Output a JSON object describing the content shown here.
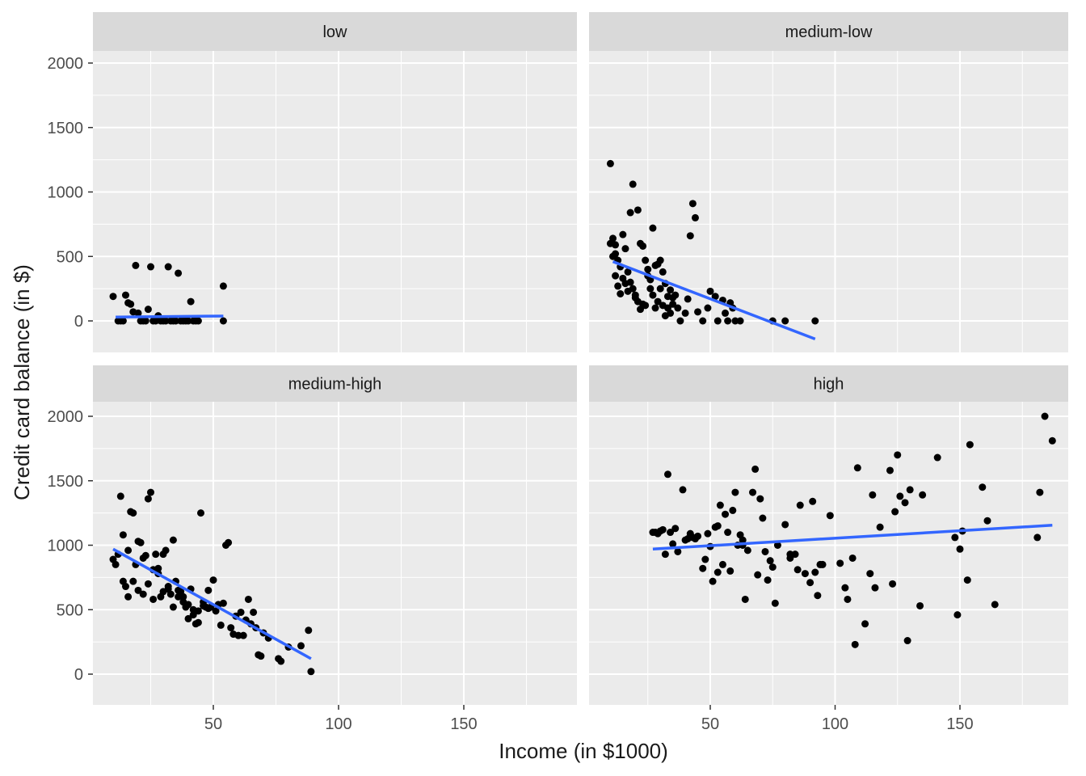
{
  "chart_data": {
    "type": "scatter",
    "facet_layout": "2x2",
    "xlabel": "Income (in $1000)",
    "ylabel": "Credit card balance (in $)",
    "xlim": [
      0,
      193
    ],
    "ylim": [
      -240,
      2100
    ],
    "x_ticks": [
      50,
      100,
      150
    ],
    "x_tick_labels": [
      "50",
      "100",
      "150"
    ],
    "y_ticks": [
      0,
      500,
      1000,
      1500,
      2000
    ],
    "y_tick_labels": [
      "0",
      "500",
      "1000",
      "1500",
      "2000"
    ],
    "grid": true,
    "colors": {
      "panel_bg": "#EBEBEB",
      "strip_bg": "#D9D9D9",
      "grid_major": "#FFFFFF",
      "point": "#000000",
      "trend_line": "#3366FF",
      "text": "#4D4D4D",
      "title_text": "#1A1A1A"
    },
    "panels": [
      {
        "label": "low",
        "trend": [
          [
            11,
            30
          ],
          [
            54,
            38
          ]
        ],
        "points": [
          [
            10,
            190
          ],
          [
            12,
            0
          ],
          [
            14,
            0
          ],
          [
            15,
            200
          ],
          [
            16,
            140
          ],
          [
            17,
            130
          ],
          [
            18,
            70
          ],
          [
            19,
            430
          ],
          [
            20,
            60
          ],
          [
            21,
            0
          ],
          [
            22,
            0
          ],
          [
            24,
            90
          ],
          [
            25,
            420
          ],
          [
            26,
            0
          ],
          [
            27,
            0
          ],
          [
            28,
            40
          ],
          [
            29,
            0
          ],
          [
            30,
            0
          ],
          [
            31,
            0
          ],
          [
            32,
            420
          ],
          [
            33,
            0
          ],
          [
            34,
            0
          ],
          [
            35,
            0
          ],
          [
            36,
            370
          ],
          [
            37,
            0
          ],
          [
            38,
            0
          ],
          [
            39,
            0
          ],
          [
            40,
            0
          ],
          [
            41,
            150
          ],
          [
            42,
            0
          ],
          [
            44,
            0
          ],
          [
            54,
            270
          ],
          [
            54,
            0
          ],
          [
            13,
            0
          ],
          [
            23,
            0
          ],
          [
            43,
            0
          ]
        ]
      },
      {
        "label": "medium-low",
        "trend": [
          [
            11,
            460
          ],
          [
            92,
            -140
          ]
        ],
        "points": [
          [
            10,
            1220
          ],
          [
            11,
            640
          ],
          [
            12,
            590
          ],
          [
            12,
            520
          ],
          [
            13,
            470
          ],
          [
            14,
            420
          ],
          [
            15,
            670
          ],
          [
            16,
            560
          ],
          [
            17,
            380
          ],
          [
            18,
            300
          ],
          [
            19,
            250
          ],
          [
            20,
            200
          ],
          [
            10,
            600
          ],
          [
            11,
            500
          ],
          [
            12,
            350
          ],
          [
            13,
            270
          ],
          [
            14,
            210
          ],
          [
            15,
            330
          ],
          [
            16,
            290
          ],
          [
            17,
            230
          ],
          [
            18,
            840
          ],
          [
            19,
            1060
          ],
          [
            21,
            860
          ],
          [
            22,
            600
          ],
          [
            23,
            580
          ],
          [
            24,
            470
          ],
          [
            25,
            400
          ],
          [
            26,
            320
          ],
          [
            27,
            720
          ],
          [
            28,
            430
          ],
          [
            29,
            440
          ],
          [
            30,
            470
          ],
          [
            31,
            380
          ],
          [
            32,
            290
          ],
          [
            33,
            190
          ],
          [
            34,
            240
          ],
          [
            35,
            180
          ],
          [
            37,
            100
          ],
          [
            38,
            0
          ],
          [
            40,
            60
          ],
          [
            41,
            170
          ],
          [
            42,
            660
          ],
          [
            43,
            910
          ],
          [
            44,
            800
          ],
          [
            45,
            70
          ],
          [
            47,
            0
          ],
          [
            49,
            100
          ],
          [
            50,
            230
          ],
          [
            52,
            190
          ],
          [
            53,
            0
          ],
          [
            55,
            160
          ],
          [
            56,
            60
          ],
          [
            57,
            0
          ],
          [
            58,
            140
          ],
          [
            59,
            100
          ],
          [
            60,
            0
          ],
          [
            62,
            0
          ],
          [
            20,
            180
          ],
          [
            21,
            150
          ],
          [
            22,
            90
          ],
          [
            23,
            130
          ],
          [
            24,
            120
          ],
          [
            25,
            350
          ],
          [
            26,
            250
          ],
          [
            27,
            200
          ],
          [
            28,
            100
          ],
          [
            29,
            150
          ],
          [
            30,
            250
          ],
          [
            31,
            120
          ],
          [
            32,
            40
          ],
          [
            33,
            100
          ],
          [
            34,
            60
          ],
          [
            35,
            130
          ],
          [
            36,
            200
          ],
          [
            75,
            0
          ],
          [
            80,
            0
          ],
          [
            92,
            0
          ]
        ]
      },
      {
        "label": "medium-high",
        "trend": [
          [
            10,
            970
          ],
          [
            89,
            120
          ]
        ],
        "points": [
          [
            10,
            890
          ],
          [
            11,
            850
          ],
          [
            12,
            930
          ],
          [
            13,
            1380
          ],
          [
            14,
            1080
          ],
          [
            15,
            680
          ],
          [
            16,
            960
          ],
          [
            17,
            1260
          ],
          [
            18,
            1250
          ],
          [
            19,
            850
          ],
          [
            20,
            1030
          ],
          [
            21,
            1020
          ],
          [
            22,
            900
          ],
          [
            23,
            920
          ],
          [
            24,
            1360
          ],
          [
            25,
            1410
          ],
          [
            26,
            810
          ],
          [
            27,
            930
          ],
          [
            28,
            780
          ],
          [
            29,
            600
          ],
          [
            30,
            930
          ],
          [
            31,
            960
          ],
          [
            32,
            680
          ],
          [
            33,
            620
          ],
          [
            34,
            1040
          ],
          [
            35,
            720
          ],
          [
            36,
            650
          ],
          [
            37,
            640
          ],
          [
            38,
            600
          ],
          [
            39,
            520
          ],
          [
            40,
            430
          ],
          [
            41,
            660
          ],
          [
            42,
            460
          ],
          [
            43,
            390
          ],
          [
            44,
            490
          ],
          [
            45,
            1250
          ],
          [
            46,
            560
          ],
          [
            47,
            520
          ],
          [
            48,
            650
          ],
          [
            49,
            520
          ],
          [
            50,
            730
          ],
          [
            51,
            490
          ],
          [
            52,
            540
          ],
          [
            53,
            380
          ],
          [
            54,
            550
          ],
          [
            55,
            1000
          ],
          [
            56,
            1020
          ],
          [
            57,
            360
          ],
          [
            58,
            310
          ],
          [
            59,
            450
          ],
          [
            60,
            300
          ],
          [
            61,
            480
          ],
          [
            62,
            300
          ],
          [
            63,
            420
          ],
          [
            64,
            580
          ],
          [
            65,
            390
          ],
          [
            66,
            480
          ],
          [
            67,
            360
          ],
          [
            68,
            150
          ],
          [
            69,
            140
          ],
          [
            70,
            320
          ],
          [
            72,
            280
          ],
          [
            76,
            120
          ],
          [
            77,
            100
          ],
          [
            80,
            210
          ],
          [
            85,
            220
          ],
          [
            88,
            340
          ],
          [
            89,
            20
          ],
          [
            14,
            720
          ],
          [
            16,
            600
          ],
          [
            18,
            720
          ],
          [
            20,
            650
          ],
          [
            22,
            620
          ],
          [
            24,
            700
          ],
          [
            26,
            580
          ],
          [
            28,
            820
          ],
          [
            30,
            640
          ],
          [
            32,
            660
          ],
          [
            34,
            520
          ],
          [
            36,
            600
          ],
          [
            38,
            560
          ],
          [
            40,
            540
          ],
          [
            42,
            500
          ],
          [
            44,
            400
          ],
          [
            46,
            530
          ],
          [
            48,
            510
          ]
        ]
      },
      {
        "label": "high",
        "trend": [
          [
            27,
            970
          ],
          [
            187,
            1155
          ]
        ],
        "points": [
          [
            27,
            1100
          ],
          [
            29,
            1090
          ],
          [
            30,
            1110
          ],
          [
            31,
            1120
          ],
          [
            32,
            930
          ],
          [
            33,
            1550
          ],
          [
            34,
            1100
          ],
          [
            35,
            1010
          ],
          [
            36,
            1130
          ],
          [
            37,
            950
          ],
          [
            39,
            1430
          ],
          [
            40,
            1040
          ],
          [
            41,
            1050
          ],
          [
            42,
            1090
          ],
          [
            43,
            1060
          ],
          [
            45,
            1070
          ],
          [
            47,
            820
          ],
          [
            48,
            890
          ],
          [
            49,
            1090
          ],
          [
            50,
            990
          ],
          [
            51,
            720
          ],
          [
            52,
            1140
          ],
          [
            53,
            790
          ],
          [
            54,
            1310
          ],
          [
            55,
            850
          ],
          [
            56,
            1240
          ],
          [
            57,
            1100
          ],
          [
            58,
            800
          ],
          [
            59,
            1270
          ],
          [
            60,
            1410
          ],
          [
            61,
            1000
          ],
          [
            62,
            1080
          ],
          [
            63,
            1040
          ],
          [
            64,
            580
          ],
          [
            65,
            960
          ],
          [
            67,
            1410
          ],
          [
            68,
            1590
          ],
          [
            69,
            770
          ],
          [
            70,
            1360
          ],
          [
            71,
            1210
          ],
          [
            72,
            950
          ],
          [
            73,
            730
          ],
          [
            74,
            880
          ],
          [
            75,
            830
          ],
          [
            76,
            550
          ],
          [
            77,
            1000
          ],
          [
            80,
            1160
          ],
          [
            82,
            900
          ],
          [
            84,
            930
          ],
          [
            85,
            810
          ],
          [
            86,
            1310
          ],
          [
            88,
            780
          ],
          [
            90,
            710
          ],
          [
            91,
            1340
          ],
          [
            93,
            610
          ],
          [
            94,
            850
          ],
          [
            95,
            850
          ],
          [
            98,
            1230
          ],
          [
            102,
            860
          ],
          [
            104,
            670
          ],
          [
            105,
            580
          ],
          [
            107,
            900
          ],
          [
            108,
            230
          ],
          [
            109,
            1600
          ],
          [
            112,
            390
          ],
          [
            114,
            780
          ],
          [
            115,
            1390
          ],
          [
            116,
            670
          ],
          [
            118,
            1140
          ],
          [
            122,
            1580
          ],
          [
            123,
            700
          ],
          [
            124,
            1260
          ],
          [
            125,
            1700
          ],
          [
            126,
            1380
          ],
          [
            128,
            1330
          ],
          [
            129,
            260
          ],
          [
            130,
            1430
          ],
          [
            134,
            530
          ],
          [
            135,
            1390
          ],
          [
            141,
            1680
          ],
          [
            148,
            1060
          ],
          [
            149,
            460
          ],
          [
            150,
            970
          ],
          [
            151,
            1110
          ],
          [
            153,
            730
          ],
          [
            154,
            1780
          ],
          [
            159,
            1450
          ],
          [
            161,
            1190
          ],
          [
            164,
            540
          ],
          [
            181,
            1060
          ],
          [
            182,
            1410
          ],
          [
            184,
            2000
          ],
          [
            187,
            1810
          ],
          [
            28,
            1100
          ],
          [
            44,
            1050
          ],
          [
            53,
            1150
          ],
          [
            63,
            1000
          ],
          [
            82,
            930
          ],
          [
            92,
            790
          ]
        ]
      }
    ]
  }
}
